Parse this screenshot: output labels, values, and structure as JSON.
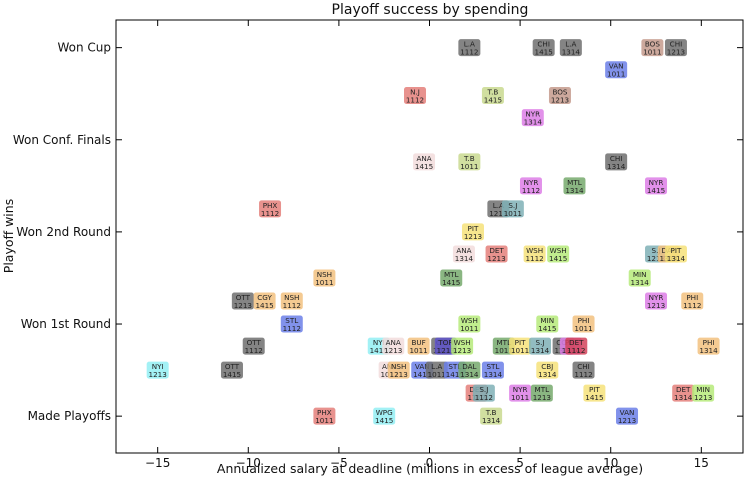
{
  "chart_data": {
    "type": "scatter",
    "title": "Playoff success by spending",
    "xlabel": "Annualized salary at deadline (millions in excess of league average)",
    "ylabel": "Playoff wins",
    "xlim": [
      -17.3,
      17.3
    ],
    "ylim": [
      -0.4,
      4.3
    ],
    "xticks": [
      -15,
      -10,
      -5,
      0,
      5,
      10,
      15
    ],
    "yticks": [
      {
        "value": 0,
        "label": "Made Playoffs"
      },
      {
        "value": 1,
        "label": "Won 1st Round"
      },
      {
        "value": 2,
        "label": "Won 2nd Round"
      },
      {
        "value": 3,
        "label": "Won Conf. Finals"
      },
      {
        "value": 4,
        "label": "Won Cup"
      }
    ],
    "grid": false,
    "colors": {
      "gray": "#6e6e6e",
      "salmon": "#e47f7a",
      "olive": "#c9d98f",
      "pink": "#f2dcdc",
      "magenta": "#dd7ee6",
      "green": "#76a96c",
      "teal": "#7fb0b6",
      "blue": "#6b7fe8",
      "cyan": "#93eef3",
      "yellow": "#f6e27a",
      "orange": "#f2c17f",
      "lime": "#b6ea7a",
      "brown": "#c49a8c",
      "navy": "#5e52c9",
      "crimson": "#d2435a"
    },
    "points": [
      {
        "x": 2.2,
        "y": 4.0,
        "team": "L.A",
        "season": "1112",
        "color": "gray"
      },
      {
        "x": 6.3,
        "y": 4.0,
        "team": "CHI",
        "season": "1415",
        "color": "gray"
      },
      {
        "x": 7.8,
        "y": 4.0,
        "team": "L.A",
        "season": "1314",
        "color": "gray"
      },
      {
        "x": 12.3,
        "y": 4.0,
        "team": "BOS",
        "season": "1011",
        "color": "brown"
      },
      {
        "x": 13.6,
        "y": 4.0,
        "team": "CHI",
        "season": "1213",
        "color": "gray"
      },
      {
        "x": 10.3,
        "y": 3.76,
        "team": "VAN",
        "season": "1011",
        "color": "blue"
      },
      {
        "x": -0.8,
        "y": 3.48,
        "team": "N.J",
        "season": "1112",
        "color": "salmon"
      },
      {
        "x": 3.5,
        "y": 3.48,
        "team": "T.B",
        "season": "1415",
        "color": "olive"
      },
      {
        "x": 7.2,
        "y": 3.48,
        "team": "BOS",
        "season": "1213",
        "color": "brown"
      },
      {
        "x": 5.7,
        "y": 3.24,
        "team": "NYR",
        "season": "1314",
        "color": "magenta"
      },
      {
        "x": -0.3,
        "y": 2.76,
        "team": "ANA",
        "season": "1415",
        "color": "pink"
      },
      {
        "x": 2.2,
        "y": 2.76,
        "team": "T.B",
        "season": "1011",
        "color": "olive"
      },
      {
        "x": 10.3,
        "y": 2.76,
        "team": "CHI",
        "season": "1314",
        "color": "gray"
      },
      {
        "x": 5.6,
        "y": 2.5,
        "team": "NYR",
        "season": "1112",
        "color": "magenta"
      },
      {
        "x": 8.0,
        "y": 2.5,
        "team": "MTL",
        "season": "1314",
        "color": "green"
      },
      {
        "x": 12.5,
        "y": 2.5,
        "team": "NYR",
        "season": "1415",
        "color": "magenta"
      },
      {
        "x": -8.8,
        "y": 2.25,
        "team": "PHX",
        "season": "1112",
        "color": "salmon"
      },
      {
        "x": 3.8,
        "y": 2.25,
        "team": "L.A",
        "season": "1213",
        "color": "gray"
      },
      {
        "x": 4.6,
        "y": 2.25,
        "team": "S.J",
        "season": "1011",
        "color": "teal"
      },
      {
        "x": 2.4,
        "y": 2.0,
        "team": "PIT",
        "season": "1213",
        "color": "yellow"
      },
      {
        "x": 1.9,
        "y": 1.76,
        "team": "ANA",
        "season": "1314",
        "color": "pink"
      },
      {
        "x": 3.7,
        "y": 1.76,
        "team": "DET",
        "season": "1213",
        "color": "salmon"
      },
      {
        "x": 5.8,
        "y": 1.76,
        "team": "WSH",
        "season": "1112",
        "color": "yellow"
      },
      {
        "x": 7.1,
        "y": 1.76,
        "team": "WSH",
        "season": "1415",
        "color": "lime"
      },
      {
        "x": 12.5,
        "y": 1.76,
        "team": "S.J",
        "season": "1213",
        "color": "teal"
      },
      {
        "x": 13.2,
        "y": 1.76,
        "team": "DAL",
        "season": "1314",
        "color": "orange"
      },
      {
        "x": 13.6,
        "y": 1.76,
        "team": "PIT",
        "season": "1314",
        "color": "yellow"
      },
      {
        "x": -5.8,
        "y": 1.5,
        "team": "NSH",
        "season": "1011",
        "color": "orange"
      },
      {
        "x": 1.2,
        "y": 1.5,
        "team": "MTL",
        "season": "1415",
        "color": "green"
      },
      {
        "x": 11.6,
        "y": 1.5,
        "team": "MIN",
        "season": "1314",
        "color": "lime"
      },
      {
        "x": -10.3,
        "y": 1.25,
        "team": "OTT",
        "season": "1213",
        "color": "gray"
      },
      {
        "x": -9.1,
        "y": 1.25,
        "team": "CGY",
        "season": "1415",
        "color": "orange"
      },
      {
        "x": -7.6,
        "y": 1.25,
        "team": "NSH",
        "season": "1112",
        "color": "orange"
      },
      {
        "x": 12.5,
        "y": 1.25,
        "team": "NYR",
        "season": "1213",
        "color": "magenta"
      },
      {
        "x": 14.5,
        "y": 1.25,
        "team": "PHI",
        "season": "1112",
        "color": "orange"
      },
      {
        "x": -7.6,
        "y": 1.0,
        "team": "STL",
        "season": "1112",
        "color": "blue"
      },
      {
        "x": 2.2,
        "y": 1.0,
        "team": "WSH",
        "season": "1011",
        "color": "lime"
      },
      {
        "x": 6.5,
        "y": 1.0,
        "team": "MIN",
        "season": "1415",
        "color": "lime"
      },
      {
        "x": 8.5,
        "y": 1.0,
        "team": "PHI",
        "season": "1011",
        "color": "orange"
      },
      {
        "x": -9.7,
        "y": 0.76,
        "team": "OTT",
        "season": "1112",
        "color": "gray"
      },
      {
        "x": -2.8,
        "y": 0.76,
        "team": "NYI",
        "season": "1415",
        "color": "cyan"
      },
      {
        "x": -2.0,
        "y": 0.76,
        "team": "ANA",
        "season": "1213",
        "color": "pink"
      },
      {
        "x": -0.6,
        "y": 0.76,
        "team": "BUF",
        "season": "1011",
        "color": "orange"
      },
      {
        "x": 0.7,
        "y": 0.76,
        "team": "CHI",
        "season": "1011",
        "color": "gray"
      },
      {
        "x": 0.9,
        "y": 0.76,
        "team": "TOR",
        "season": "1213",
        "color": "navy"
      },
      {
        "x": 1.8,
        "y": 0.76,
        "team": "WSH",
        "season": "1213",
        "color": "lime"
      },
      {
        "x": 4.1,
        "y": 0.76,
        "team": "MTL",
        "season": "1011",
        "color": "green"
      },
      {
        "x": 5.0,
        "y": 0.76,
        "team": "PIT",
        "season": "1011",
        "color": "yellow"
      },
      {
        "x": 6.1,
        "y": 0.76,
        "team": "S.J",
        "season": "1314",
        "color": "teal"
      },
      {
        "x": 7.4,
        "y": 0.76,
        "team": "COL",
        "season": "1314",
        "color": "gray"
      },
      {
        "x": 7.8,
        "y": 0.76,
        "team": "PHI",
        "season": "1314",
        "color": "magenta"
      },
      {
        "x": 8.1,
        "y": 0.76,
        "team": "DET",
        "season": "1112",
        "color": "crimson"
      },
      {
        "x": 15.4,
        "y": 0.76,
        "team": "PHI",
        "season": "1314",
        "color": "orange"
      },
      {
        "x": -15.0,
        "y": 0.5,
        "team": "NYI",
        "season": "1213",
        "color": "cyan"
      },
      {
        "x": -10.9,
        "y": 0.5,
        "team": "OTT",
        "season": "1415",
        "color": "gray"
      },
      {
        "x": -2.2,
        "y": 0.5,
        "team": "ANA",
        "season": "1011",
        "color": "pink"
      },
      {
        "x": -1.7,
        "y": 0.5,
        "team": "NSH",
        "season": "1213",
        "color": "orange"
      },
      {
        "x": -0.4,
        "y": 0.5,
        "team": "VAN",
        "season": "1415",
        "color": "blue"
      },
      {
        "x": 0.4,
        "y": 0.5,
        "team": "L.A",
        "season": "1011",
        "color": "gray"
      },
      {
        "x": 1.4,
        "y": 0.5,
        "team": "STL",
        "season": "1415",
        "color": "blue"
      },
      {
        "x": 2.2,
        "y": 0.5,
        "team": "DAL",
        "season": "1314",
        "color": "green"
      },
      {
        "x": 3.5,
        "y": 0.5,
        "team": "STL",
        "season": "1314",
        "color": "blue"
      },
      {
        "x": 6.5,
        "y": 0.5,
        "team": "CBJ",
        "season": "1314",
        "color": "yellow"
      },
      {
        "x": 8.5,
        "y": 0.5,
        "team": "CHI",
        "season": "1112",
        "color": "gray"
      },
      {
        "x": 2.6,
        "y": 0.25,
        "team": "DET",
        "season": "1112",
        "color": "salmon"
      },
      {
        "x": 3.0,
        "y": 0.25,
        "team": "S.J",
        "season": "1112",
        "color": "teal"
      },
      {
        "x": 5.0,
        "y": 0.25,
        "team": "NYR",
        "season": "1011",
        "color": "magenta"
      },
      {
        "x": 6.2,
        "y": 0.25,
        "team": "MTL",
        "season": "1213",
        "color": "green"
      },
      {
        "x": 9.1,
        "y": 0.25,
        "team": "PIT",
        "season": "1415",
        "color": "yellow"
      },
      {
        "x": 14.0,
        "y": 0.25,
        "team": "DET",
        "season": "1314",
        "color": "salmon"
      },
      {
        "x": 15.1,
        "y": 0.25,
        "team": "MIN",
        "season": "1213",
        "color": "lime"
      },
      {
        "x": -5.8,
        "y": 0.0,
        "team": "PHX",
        "season": "1011",
        "color": "salmon"
      },
      {
        "x": -2.5,
        "y": 0.0,
        "team": "WPG",
        "season": "1415",
        "color": "cyan"
      },
      {
        "x": 3.4,
        "y": 0.0,
        "team": "T.B",
        "season": "1314",
        "color": "olive"
      },
      {
        "x": 10.9,
        "y": 0.0,
        "team": "VAN",
        "season": "1213",
        "color": "blue"
      }
    ]
  }
}
